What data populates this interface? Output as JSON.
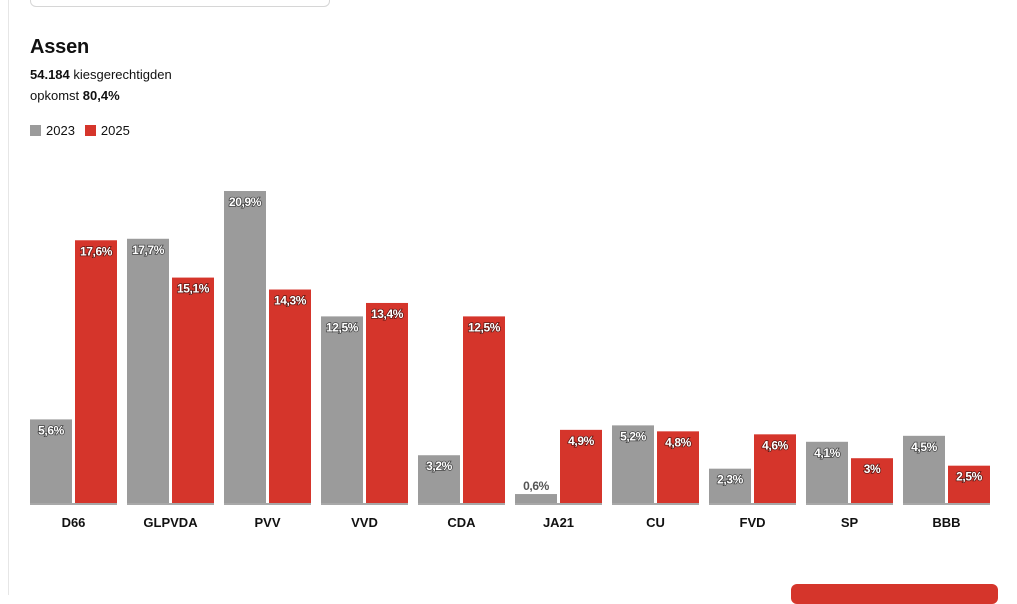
{
  "header": {
    "title": "Assen",
    "eligible_voters_value": "54.184",
    "eligible_voters_label": "kiesgerechtigden",
    "turnout_label": "opkomst",
    "turnout_value": "80,4%"
  },
  "colors": {
    "series_2023": "#9b9b9b",
    "series_2025": "#d5352b"
  },
  "chart_data": {
    "type": "bar",
    "title": "Assen",
    "xlabel": "",
    "ylabel": "",
    "ylim": [
      0,
      22
    ],
    "grid": false,
    "legend": "top-left",
    "categories": [
      "D66",
      "GLPVDA",
      "PVV",
      "VVD",
      "CDA",
      "JA21",
      "CU",
      "FVD",
      "SP",
      "BBB"
    ],
    "series": [
      {
        "name": "2023",
        "values": [
          5.6,
          17.7,
          20.9,
          12.5,
          3.2,
          0.6,
          5.2,
          2.3,
          4.1,
          4.5
        ],
        "labels": [
          "5,6%",
          "17,7%",
          "20,9%",
          "12,5%",
          "3,2%",
          "0,6%",
          "5,2%",
          "2,3%",
          "4,1%",
          "4,5%"
        ]
      },
      {
        "name": "2025",
        "values": [
          17.6,
          15.1,
          14.3,
          13.4,
          12.5,
          4.9,
          4.8,
          4.6,
          3.0,
          2.5
        ],
        "labels": [
          "17,6%",
          "15,1%",
          "14,3%",
          "13,4%",
          "12,5%",
          "4,9%",
          "4,8%",
          "4,6%",
          "3%",
          "2,5%"
        ]
      }
    ]
  }
}
